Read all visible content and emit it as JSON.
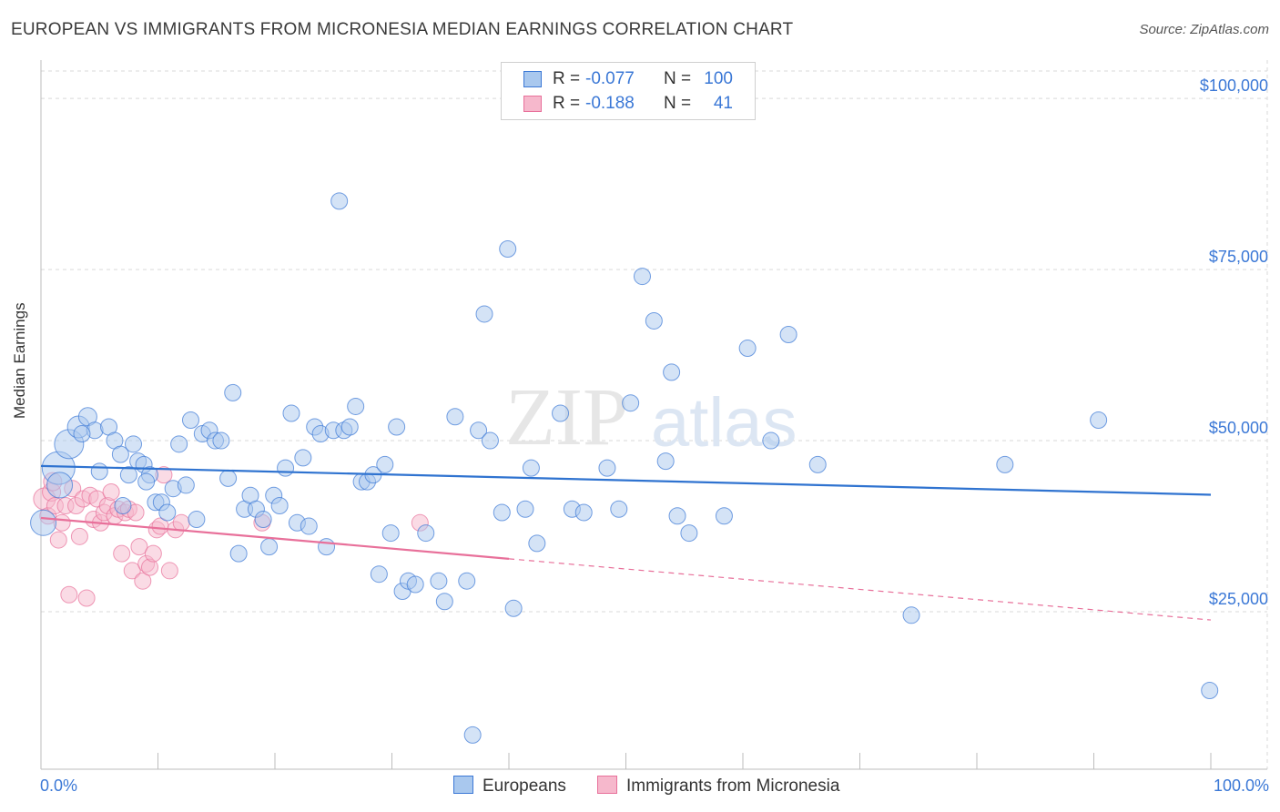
{
  "header": {
    "title": "EUROPEAN VS IMMIGRANTS FROM MICRONESIA MEDIAN EARNINGS CORRELATION CHART",
    "source": "Source: ZipAtlas.com"
  },
  "watermark": {
    "zip": "ZIP",
    "atlas": "atlas"
  },
  "legend": {
    "rows": [
      {
        "r_label": "R =",
        "r_value": "-0.077",
        "n_label": "N =",
        "n_value": "100"
      },
      {
        "r_label": "R =",
        "r_value": "-0.188",
        "n_label": "N =",
        "n_value": "41"
      }
    ]
  },
  "bottom_legend": {
    "europeans": "Europeans",
    "micronesia": "Immigrants from Micronesia"
  },
  "colors": {
    "blue": "#3b78d6",
    "blue_fill": "#a9c8ee",
    "blue_line": "#2f73d0",
    "pink": "#e8709a",
    "pink_fill": "#f6b8cc",
    "grid": "#d9d9d9"
  },
  "chart_data": {
    "type": "scatter",
    "title": "EUROPEAN VS IMMIGRANTS FROM MICRONESIA MEDIAN EARNINGS CORRELATION CHART",
    "xlabel": "",
    "ylabel": "Median Earnings",
    "xlim": [
      0,
      100
    ],
    "ylim": [
      2000,
      104000
    ],
    "x_tick_labels": [
      "0.0%",
      "100.0%"
    ],
    "y_ticks": [
      25000,
      50000,
      75000,
      100000
    ],
    "y_tick_labels": [
      "$25,000",
      "$50,000",
      "$75,000",
      "$100,000"
    ],
    "series": [
      {
        "name": "Europeans",
        "R": -0.077,
        "N": 100,
        "trend": {
          "x0": 0,
          "y0": 46300,
          "x1": 100,
          "y1": 42100,
          "solid_to": 100
        },
        "points": [
          [
            0.2,
            38000,
            14
          ],
          [
            1.5,
            46000,
            18
          ],
          [
            1.6,
            43500,
            14
          ],
          [
            2.4,
            49500,
            16
          ],
          [
            3.2,
            52000,
            12
          ],
          [
            4.0,
            53500,
            10
          ],
          [
            4.6,
            51500,
            9
          ],
          [
            5.8,
            52000,
            9
          ],
          [
            6.3,
            50000,
            9
          ],
          [
            6.8,
            48000,
            9
          ],
          [
            7.5,
            45000,
            9
          ],
          [
            7.9,
            49500,
            9
          ],
          [
            8.3,
            47000,
            9
          ],
          [
            8.8,
            46500,
            9
          ],
          [
            9.3,
            45000,
            9
          ],
          [
            9.8,
            41000,
            9
          ],
          [
            10.3,
            41000,
            9
          ],
          [
            10.8,
            39500,
            9
          ],
          [
            11.3,
            43000,
            9
          ],
          [
            11.8,
            49500,
            9
          ],
          [
            12.4,
            43500,
            9
          ],
          [
            12.8,
            53000,
            9
          ],
          [
            13.3,
            38500,
            9
          ],
          [
            13.8,
            51000,
            9
          ],
          [
            14.4,
            51500,
            9
          ],
          [
            14.9,
            50000,
            9
          ],
          [
            15.4,
            50000,
            9
          ],
          [
            16.0,
            44500,
            9
          ],
          [
            16.4,
            57000,
            9
          ],
          [
            16.9,
            33500,
            9
          ],
          [
            17.4,
            40000,
            9
          ],
          [
            17.9,
            42000,
            9
          ],
          [
            18.4,
            40000,
            9
          ],
          [
            19.0,
            38500,
            9
          ],
          [
            19.5,
            34500,
            9
          ],
          [
            19.9,
            42000,
            9
          ],
          [
            20.4,
            40500,
            9
          ],
          [
            20.9,
            46000,
            9
          ],
          [
            21.4,
            54000,
            9
          ],
          [
            21.9,
            38000,
            9
          ],
          [
            22.4,
            47500,
            9
          ],
          [
            22.9,
            37500,
            9
          ],
          [
            23.4,
            52000,
            9
          ],
          [
            23.9,
            51000,
            9
          ],
          [
            24.4,
            34500,
            9
          ],
          [
            25.0,
            51500,
            9
          ],
          [
            25.5,
            85000,
            9
          ],
          [
            25.9,
            51500,
            9
          ],
          [
            26.4,
            52000,
            9
          ],
          [
            26.9,
            55000,
            9
          ],
          [
            27.4,
            44000,
            9
          ],
          [
            27.9,
            44000,
            9
          ],
          [
            28.4,
            45000,
            9
          ],
          [
            28.9,
            30500,
            9
          ],
          [
            29.4,
            46500,
            9
          ],
          [
            29.9,
            36500,
            9
          ],
          [
            30.4,
            52000,
            9
          ],
          [
            30.9,
            28000,
            9
          ],
          [
            31.4,
            29500,
            9
          ],
          [
            32.0,
            29000,
            9
          ],
          [
            32.9,
            36500,
            9
          ],
          [
            34.0,
            29500,
            9
          ],
          [
            34.5,
            26500,
            9
          ],
          [
            35.4,
            53500,
            9
          ],
          [
            36.4,
            29500,
            9
          ],
          [
            36.9,
            7000,
            9
          ],
          [
            37.4,
            51500,
            9
          ],
          [
            37.9,
            68500,
            9
          ],
          [
            38.4,
            50000,
            9
          ],
          [
            39.4,
            39500,
            9
          ],
          [
            39.9,
            78000,
            9
          ],
          [
            40.4,
            25500,
            9
          ],
          [
            41.4,
            40000,
            9
          ],
          [
            41.9,
            46000,
            9
          ],
          [
            42.4,
            35000,
            9
          ],
          [
            44.4,
            54000,
            9
          ],
          [
            45.4,
            40000,
            9
          ],
          [
            46.4,
            39500,
            9
          ],
          [
            48.4,
            46000,
            9
          ],
          [
            49.4,
            40000,
            9
          ],
          [
            50.4,
            55500,
            9
          ],
          [
            51.4,
            74000,
            9
          ],
          [
            52.4,
            67500,
            9
          ],
          [
            53.4,
            47000,
            9
          ],
          [
            53.9,
            60000,
            9
          ],
          [
            54.4,
            39000,
            9
          ],
          [
            55.4,
            36500,
            9
          ],
          [
            58.4,
            39000,
            9
          ],
          [
            60.4,
            63500,
            9
          ],
          [
            62.4,
            50000,
            9
          ],
          [
            63.9,
            65500,
            9
          ],
          [
            66.4,
            46500,
            9
          ],
          [
            74.4,
            24500,
            9
          ],
          [
            82.4,
            46500,
            9
          ],
          [
            90.4,
            53000,
            9
          ],
          [
            99.9,
            13500,
            9
          ],
          [
            5.0,
            45500,
            9
          ],
          [
            7.0,
            40500,
            9
          ],
          [
            3.5,
            51000,
            9
          ],
          [
            9.0,
            44000,
            9
          ]
        ]
      },
      {
        "name": "Immigrants from Micronesia",
        "R": -0.188,
        "N": 41,
        "trend": {
          "x0": 0,
          "y0": 38700,
          "x1": 100,
          "y1": 23800,
          "solid_to": 40
        },
        "points": [
          [
            0.3,
            41500,
            12
          ],
          [
            0.6,
            39000,
            9
          ],
          [
            0.9,
            42500,
            10
          ],
          [
            1.2,
            40500,
            9
          ],
          [
            1.5,
            35500,
            9
          ],
          [
            1.8,
            38000,
            9
          ],
          [
            2.1,
            40500,
            9
          ],
          [
            2.4,
            27500,
            9
          ],
          [
            2.7,
            43000,
            9
          ],
          [
            3.0,
            40500,
            9
          ],
          [
            3.3,
            36000,
            9
          ],
          [
            3.6,
            41500,
            9
          ],
          [
            3.9,
            27000,
            9
          ],
          [
            4.2,
            42000,
            9
          ],
          [
            4.5,
            38500,
            9
          ],
          [
            4.8,
            41500,
            9
          ],
          [
            5.1,
            38000,
            9
          ],
          [
            5.4,
            39500,
            9
          ],
          [
            5.7,
            40500,
            9
          ],
          [
            6.0,
            42500,
            9
          ],
          [
            6.3,
            39000,
            9
          ],
          [
            6.6,
            40000,
            9
          ],
          [
            6.9,
            33500,
            9
          ],
          [
            7.2,
            39500,
            9
          ],
          [
            7.5,
            40000,
            9
          ],
          [
            7.8,
            31000,
            9
          ],
          [
            8.1,
            39500,
            9
          ],
          [
            8.4,
            34500,
            9
          ],
          [
            8.7,
            29500,
            9
          ],
          [
            9.0,
            32000,
            9
          ],
          [
            9.3,
            31500,
            9
          ],
          [
            9.6,
            33500,
            9
          ],
          [
            9.9,
            37000,
            9
          ],
          [
            10.2,
            37500,
            9
          ],
          [
            10.5,
            45000,
            9
          ],
          [
            11.0,
            31000,
            9
          ],
          [
            11.5,
            37000,
            9
          ],
          [
            12.0,
            38000,
            9
          ],
          [
            18.9,
            38000,
            9
          ],
          [
            32.4,
            38000,
            9
          ],
          [
            1.0,
            44000,
            10
          ]
        ]
      }
    ]
  }
}
